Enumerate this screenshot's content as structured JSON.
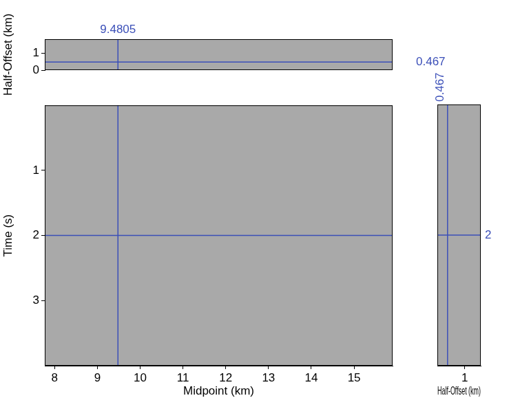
{
  "chart_data": [
    {
      "type": "image",
      "y_label": "Half-Offset (km)",
      "xlim": [
        7.77,
        15.9
      ],
      "ylim": [
        0,
        1.8
      ],
      "yticks": [
        0,
        1
      ],
      "tick_labels": "y",
      "crosshair": {
        "x": 9.4805,
        "y": 0.467
      },
      "color": "#3b4fb8"
    },
    {
      "type": "image",
      "x_label": "Midpoint (km)",
      "y_label": "Time (s)",
      "xlim": [
        7.77,
        15.9
      ],
      "xticks": [
        8,
        9,
        10,
        11,
        12,
        13,
        14,
        15
      ],
      "ylim": [
        4,
        0
      ],
      "yticks": [
        1,
        2,
        3
      ]
    },
    {
      "type": "image",
      "x_label": "Half-Offset (km)",
      "xlim": [
        0.15,
        1.5
      ],
      "xticks": [
        1
      ],
      "ylim": [
        4,
        0
      ],
      "tick_labels": "x",
      "crosshair": {
        "x": 0.467,
        "y": 2
      },
      "color": "#3b4fb8"
    }
  ]
}
